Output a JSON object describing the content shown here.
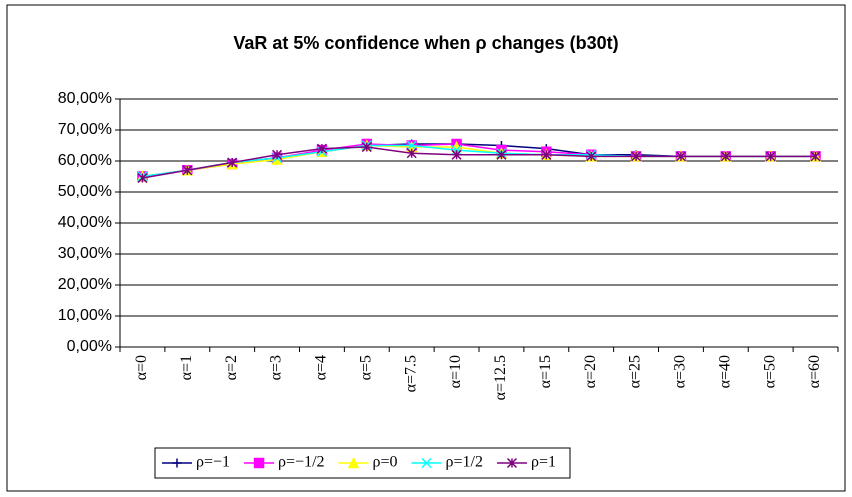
{
  "chart_data": {
    "type": "line",
    "title": "VaR at 5% confidence when ρ changes (b30t)",
    "categories": [
      "α=0",
      "α=1",
      "α=2",
      "α=3",
      "α=4",
      "α=5",
      "α=7.5",
      "α=10",
      "α=12.5",
      "α=15",
      "α=20",
      "α=25",
      "α=30",
      "α=40",
      "α=50",
      "α=60"
    ],
    "series": [
      {
        "name": "ρ=−1",
        "color": "#000080",
        "marker": "plus",
        "values": [
          55,
          57,
          59.5,
          61,
          63,
          65,
          65.5,
          65.5,
          65,
          64,
          62,
          62,
          61.5,
          61.5,
          61.5,
          61.5
        ]
      },
      {
        "name": "ρ=−1/2",
        "color": "#ff00ff",
        "marker": "square",
        "values": [
          55,
          57,
          59,
          61,
          63.5,
          65.5,
          65,
          65.5,
          63.5,
          63,
          62,
          61.5,
          61.5,
          61.5,
          61.5,
          61.5
        ]
      },
      {
        "name": "ρ=0",
        "color": "#ffff00",
        "marker": "triangle",
        "values": [
          55,
          57,
          59,
          60.5,
          63,
          65,
          64.5,
          64.5,
          62.5,
          62,
          61.5,
          61.5,
          61.5,
          61.5,
          61.5,
          61.5
        ]
      },
      {
        "name": "ρ=1/2",
        "color": "#00ffff",
        "marker": "x",
        "values": [
          55,
          57,
          59.5,
          61,
          63,
          65,
          65,
          63.5,
          62.5,
          62,
          62,
          61.5,
          61.5,
          61.5,
          61.5,
          61.5
        ]
      },
      {
        "name": "ρ=1",
        "color": "#800080",
        "marker": "star",
        "values": [
          54.5,
          57,
          59.5,
          62,
          64,
          64.5,
          62.5,
          62,
          62,
          62,
          61.5,
          61.5,
          61.5,
          61.5,
          61.5,
          61.5
        ]
      }
    ],
    "ylim": [
      0,
      80
    ],
    "yticks": [
      {
        "value": 0,
        "label": "0,00%"
      },
      {
        "value": 10,
        "label": "10,00%"
      },
      {
        "value": 20,
        "label": "20,00%"
      },
      {
        "value": 30,
        "label": "30,00%"
      },
      {
        "value": 40,
        "label": "40,00%"
      },
      {
        "value": 50,
        "label": "50,00%"
      },
      {
        "value": 60,
        "label": "60,00%"
      },
      {
        "value": 70,
        "label": "70,00%"
      },
      {
        "value": 80,
        "label": "80,00%"
      }
    ],
    "grid": true,
    "legend": "bottom"
  }
}
